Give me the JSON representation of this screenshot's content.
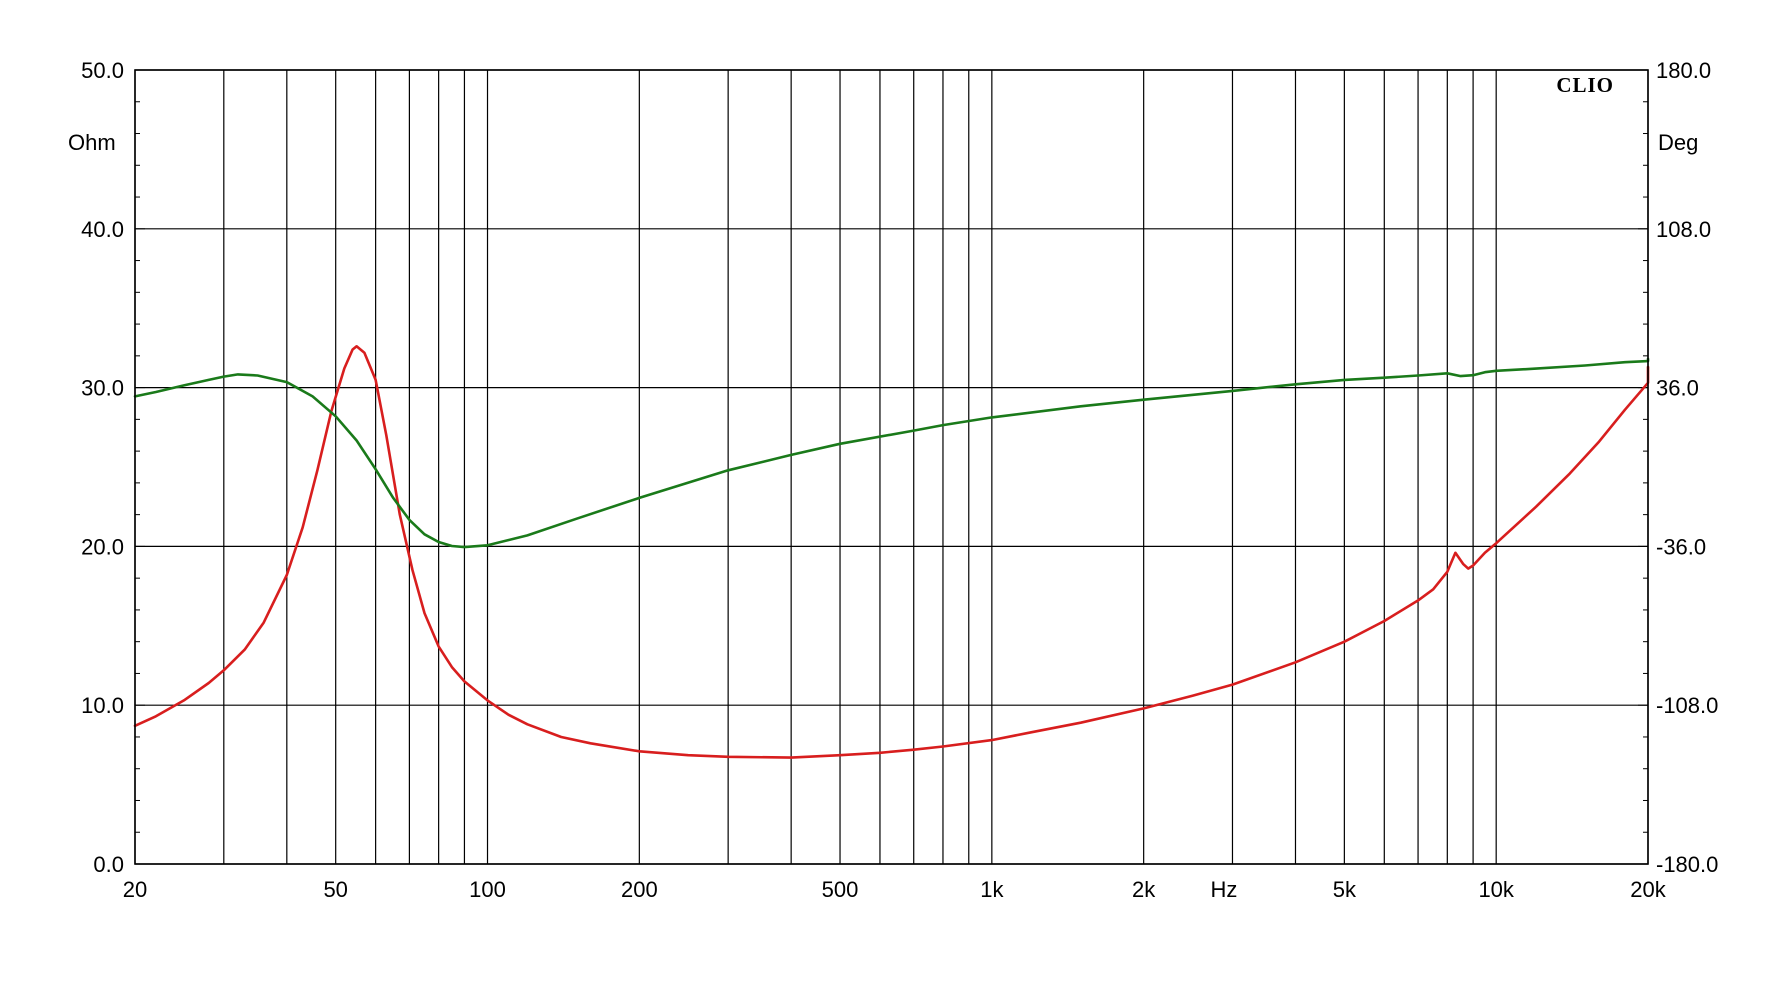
{
  "brand": "CLIO",
  "chart_data": {
    "type": "line",
    "title": "",
    "x_axis": {
      "scale": "log",
      "range": [
        20,
        20000
      ],
      "unit_label": "Hz",
      "tick_labels": [
        {
          "value": 20,
          "label": "20"
        },
        {
          "value": 50,
          "label": "50"
        },
        {
          "value": 100,
          "label": "100"
        },
        {
          "value": 200,
          "label": "200"
        },
        {
          "value": 500,
          "label": "500"
        },
        {
          "value": 1000,
          "label": "1k"
        },
        {
          "value": 2000,
          "label": "2k"
        },
        {
          "value": 5000,
          "label": "5k"
        },
        {
          "value": 10000,
          "label": "10k"
        },
        {
          "value": 20000,
          "label": "20k"
        }
      ],
      "gridlines": [
        20,
        30,
        40,
        50,
        60,
        70,
        80,
        90,
        100,
        200,
        300,
        400,
        500,
        600,
        700,
        800,
        900,
        1000,
        2000,
        3000,
        4000,
        5000,
        6000,
        7000,
        8000,
        9000,
        10000,
        20000
      ]
    },
    "y_left": {
      "unit_label": "Ohm",
      "range": [
        0,
        50
      ],
      "ticks": [
        {
          "value": 0,
          "label": "0.0"
        },
        {
          "value": 10,
          "label": "10.0"
        },
        {
          "value": 20,
          "label": "20.0"
        },
        {
          "value": 30,
          "label": "30.0"
        },
        {
          "value": 40,
          "label": "40.0"
        },
        {
          "value": 50,
          "label": "50.0"
        }
      ]
    },
    "y_right": {
      "unit_label": "Deg",
      "range": [
        -180,
        180
      ],
      "ticks": [
        {
          "value": -180,
          "label": "-180.0"
        },
        {
          "value": -108,
          "label": "-108.0"
        },
        {
          "value": -36,
          "label": "-36.0"
        },
        {
          "value": 36,
          "label": "36.0"
        },
        {
          "value": 108,
          "label": "108.0"
        },
        {
          "value": 180,
          "label": "180.0"
        }
      ]
    },
    "grid": true,
    "series": [
      {
        "axis": "left",
        "color": "#d81e1e",
        "points": [
          [
            20,
            8.7
          ],
          [
            22,
            9.3
          ],
          [
            25,
            10.3
          ],
          [
            28,
            11.4
          ],
          [
            30,
            12.2
          ],
          [
            33,
            13.5
          ],
          [
            36,
            15.2
          ],
          [
            40,
            18.2
          ],
          [
            43,
            21.2
          ],
          [
            46,
            24.8
          ],
          [
            49,
            28.5
          ],
          [
            52,
            31.2
          ],
          [
            54,
            32.4
          ],
          [
            55,
            32.6
          ],
          [
            57,
            32.2
          ],
          [
            60,
            30.5
          ],
          [
            63,
            27.0
          ],
          [
            67,
            22.0
          ],
          [
            71,
            18.5
          ],
          [
            75,
            15.8
          ],
          [
            80,
            13.7
          ],
          [
            85,
            12.4
          ],
          [
            90,
            11.5
          ],
          [
            100,
            10.3
          ],
          [
            110,
            9.4
          ],
          [
            120,
            8.8
          ],
          [
            140,
            8.0
          ],
          [
            160,
            7.6
          ],
          [
            200,
            7.1
          ],
          [
            250,
            6.85
          ],
          [
            300,
            6.75
          ],
          [
            400,
            6.7
          ],
          [
            500,
            6.85
          ],
          [
            600,
            7.0
          ],
          [
            700,
            7.2
          ],
          [
            800,
            7.4
          ],
          [
            1000,
            7.8
          ],
          [
            1200,
            8.3
          ],
          [
            1500,
            8.9
          ],
          [
            2000,
            9.8
          ],
          [
            2500,
            10.6
          ],
          [
            3000,
            11.3
          ],
          [
            4000,
            12.7
          ],
          [
            5000,
            14.0
          ],
          [
            6000,
            15.3
          ],
          [
            7000,
            16.6
          ],
          [
            7500,
            17.3
          ],
          [
            8000,
            18.4
          ],
          [
            8300,
            19.6
          ],
          [
            8600,
            18.9
          ],
          [
            8800,
            18.6
          ],
          [
            9000,
            18.8
          ],
          [
            9500,
            19.6
          ],
          [
            10000,
            20.2
          ],
          [
            12000,
            22.5
          ],
          [
            14000,
            24.6
          ],
          [
            16000,
            26.6
          ],
          [
            18000,
            28.6
          ],
          [
            20000,
            30.3
          ],
          [
            21000,
            31.3
          ]
        ]
      },
      {
        "axis": "right",
        "color": "#1a7a1a",
        "points": [
          [
            20,
            32
          ],
          [
            22,
            34
          ],
          [
            25,
            37
          ],
          [
            28,
            39.5
          ],
          [
            30,
            41
          ],
          [
            32,
            42
          ],
          [
            35,
            41.5
          ],
          [
            40,
            38.5
          ],
          [
            45,
            32
          ],
          [
            50,
            23
          ],
          [
            55,
            12
          ],
          [
            60,
            -1
          ],
          [
            65,
            -14
          ],
          [
            70,
            -24
          ],
          [
            75,
            -30.5
          ],
          [
            80,
            -34
          ],
          [
            85,
            -35.8
          ],
          [
            90,
            -36.3
          ],
          [
            100,
            -35.5
          ],
          [
            120,
            -31
          ],
          [
            150,
            -23.5
          ],
          [
            200,
            -14
          ],
          [
            300,
            -1.5
          ],
          [
            400,
            5.5
          ],
          [
            500,
            10.5
          ],
          [
            700,
            16.5
          ],
          [
            800,
            19
          ],
          [
            1000,
            22.5
          ],
          [
            1500,
            27.5
          ],
          [
            2000,
            30.5
          ],
          [
            3000,
            34.5
          ],
          [
            4000,
            37.5
          ],
          [
            5000,
            39.5
          ],
          [
            6000,
            40.5
          ],
          [
            7000,
            41.5
          ],
          [
            8000,
            42.5
          ],
          [
            8500,
            41.2
          ],
          [
            9000,
            41.6
          ],
          [
            9500,
            43
          ],
          [
            10000,
            43.6
          ],
          [
            12000,
            44.6
          ],
          [
            15000,
            46
          ],
          [
            18000,
            47.5
          ],
          [
            20000,
            48
          ],
          [
            21000,
            49
          ]
        ]
      }
    ]
  }
}
